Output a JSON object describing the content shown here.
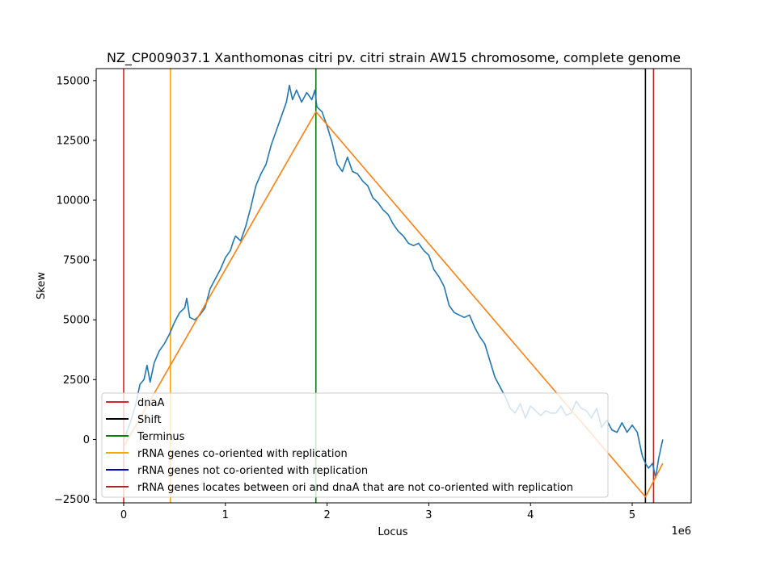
{
  "chart_data": {
    "type": "line",
    "title": "NZ_CP009037.1 Xanthomonas citri pv. citri strain AW15 chromosome, complete genome",
    "xlabel": "Locus",
    "ylabel": "Skew",
    "x_offset_label": "1e6",
    "xlim": [
      -270000,
      5580000
    ],
    "ylim": [
      -2650.0,
      15500
    ],
    "x_ticks": [
      0,
      1000000,
      2000000,
      3000000,
      4000000,
      5000000
    ],
    "x_tick_labels": [
      "0",
      "1",
      "2",
      "3",
      "4",
      "5"
    ],
    "y_ticks": [
      -2500,
      0,
      2500,
      5000,
      7500,
      10000,
      12500,
      15000
    ],
    "y_tick_labels": [
      "−2500",
      "0",
      "2500",
      "5000",
      "7500",
      "10000",
      "12500",
      "15000"
    ],
    "grid": false,
    "legend_location": "lower-left",
    "series": [
      {
        "kind": "line",
        "color": "#1f77b4",
        "points": [
          [
            0,
            0
          ],
          [
            40000,
            400
          ],
          [
            80000,
            900
          ],
          [
            120000,
            1500
          ],
          [
            160000,
            2300
          ],
          [
            200000,
            2500
          ],
          [
            230000,
            3100
          ],
          [
            260000,
            2400
          ],
          [
            300000,
            3200
          ],
          [
            350000,
            3700
          ],
          [
            400000,
            4000
          ],
          [
            450000,
            4400
          ],
          [
            500000,
            4900
          ],
          [
            550000,
            5300
          ],
          [
            600000,
            5500
          ],
          [
            620000,
            5900
          ],
          [
            650000,
            5100
          ],
          [
            700000,
            5000
          ],
          [
            750000,
            5200
          ],
          [
            800000,
            5500
          ],
          [
            850000,
            6300
          ],
          [
            900000,
            6700
          ],
          [
            950000,
            7100
          ],
          [
            1000000,
            7600
          ],
          [
            1050000,
            7900
          ],
          [
            1080000,
            8300
          ],
          [
            1100000,
            8500
          ],
          [
            1150000,
            8300
          ],
          [
            1200000,
            8900
          ],
          [
            1250000,
            9700
          ],
          [
            1300000,
            10600
          ],
          [
            1350000,
            11100
          ],
          [
            1400000,
            11500
          ],
          [
            1450000,
            12300
          ],
          [
            1500000,
            12900
          ],
          [
            1550000,
            13500
          ],
          [
            1600000,
            14100
          ],
          [
            1630000,
            14800
          ],
          [
            1660000,
            14200
          ],
          [
            1700000,
            14600
          ],
          [
            1750000,
            14100
          ],
          [
            1800000,
            14500
          ],
          [
            1850000,
            14200
          ],
          [
            1880000,
            14600
          ],
          [
            1900000,
            13900
          ],
          [
            1950000,
            13700
          ],
          [
            2000000,
            13100
          ],
          [
            2050000,
            12400
          ],
          [
            2100000,
            11500
          ],
          [
            2150000,
            11200
          ],
          [
            2200000,
            11800
          ],
          [
            2250000,
            11200
          ],
          [
            2300000,
            11100
          ],
          [
            2350000,
            10800
          ],
          [
            2400000,
            10600
          ],
          [
            2450000,
            10100
          ],
          [
            2500000,
            9900
          ],
          [
            2550000,
            9600
          ],
          [
            2600000,
            9400
          ],
          [
            2650000,
            9000
          ],
          [
            2700000,
            8700
          ],
          [
            2750000,
            8500
          ],
          [
            2800000,
            8200
          ],
          [
            2850000,
            8100
          ],
          [
            2900000,
            8200
          ],
          [
            2950000,
            7900
          ],
          [
            3000000,
            7700
          ],
          [
            3050000,
            7100
          ],
          [
            3100000,
            6800
          ],
          [
            3150000,
            6400
          ],
          [
            3200000,
            5600
          ],
          [
            3250000,
            5300
          ],
          [
            3300000,
            5200
          ],
          [
            3350000,
            5100
          ],
          [
            3400000,
            5200
          ],
          [
            3450000,
            4700
          ],
          [
            3500000,
            4300
          ],
          [
            3550000,
            4000
          ],
          [
            3600000,
            3300
          ],
          [
            3650000,
            2600
          ],
          [
            3700000,
            2200
          ],
          [
            3750000,
            1800
          ],
          [
            3800000,
            1300
          ],
          [
            3850000,
            1100
          ],
          [
            3900000,
            1500
          ],
          [
            3950000,
            900
          ],
          [
            4000000,
            1400
          ],
          [
            4050000,
            1200
          ],
          [
            4100000,
            1000
          ],
          [
            4150000,
            1200
          ],
          [
            4200000,
            1100
          ],
          [
            4250000,
            1100
          ],
          [
            4300000,
            1400
          ],
          [
            4350000,
            1000
          ],
          [
            4400000,
            1100
          ],
          [
            4450000,
            1600
          ],
          [
            4500000,
            1300
          ],
          [
            4550000,
            1200
          ],
          [
            4600000,
            900
          ],
          [
            4650000,
            1300
          ],
          [
            4700000,
            500
          ],
          [
            4750000,
            800
          ],
          [
            4800000,
            400
          ],
          [
            4850000,
            300
          ],
          [
            4900000,
            700
          ],
          [
            4950000,
            300
          ],
          [
            5000000,
            600
          ],
          [
            5050000,
            300
          ],
          [
            5100000,
            -700
          ],
          [
            5130000,
            -1000
          ],
          [
            5160000,
            -1200
          ],
          [
            5200000,
            -1000
          ],
          [
            5230000,
            -1600
          ],
          [
            5260000,
            -800
          ],
          [
            5300000,
            0
          ]
        ]
      },
      {
        "kind": "line",
        "color": "#ff7f0e",
        "points": [
          [
            0,
            -300
          ],
          [
            1890000,
            13700
          ],
          [
            5130000,
            -2400
          ],
          [
            5300000,
            -1000
          ]
        ]
      }
    ],
    "vertical_lines": [
      {
        "x": 0,
        "color": "#d62728",
        "legend": "dnaA"
      },
      {
        "x": 460000,
        "color": "#ffa500",
        "legend": "rRNA genes co-oriented with replication"
      },
      {
        "x": 1890000,
        "color": "#008000",
        "legend": "Terminus"
      },
      {
        "x": 5130000,
        "color": "#000000",
        "legend": "Shift"
      },
      {
        "x": 5210000,
        "color": "#a52a2a",
        "legend": "rRNA genes locates between ori and dnaA that are not co-oriented with replication"
      }
    ],
    "legend": [
      {
        "label": "dnaA",
        "color": "#d62728"
      },
      {
        "label": "Shift",
        "color": "#000000"
      },
      {
        "label": "Terminus",
        "color": "#008000"
      },
      {
        "label": "rRNA genes co-oriented with replication",
        "color": "#ffa500"
      },
      {
        "label": "rRNA genes not co-oriented with replication",
        "color": "#0000cd"
      },
      {
        "label": "rRNA genes locates between ori and dnaA that are not co-oriented with replication",
        "color": "#a52a2a"
      }
    ]
  }
}
